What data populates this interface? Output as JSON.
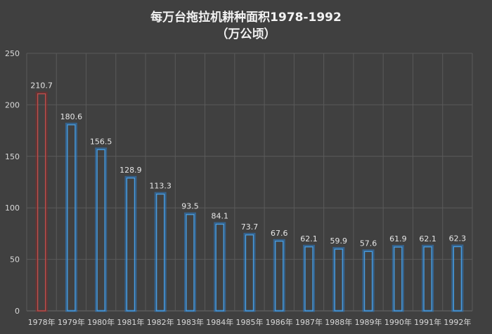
{
  "chart_data": {
    "type": "bar",
    "title": "每万台拖拉机耕种面积1978-1992",
    "subtitle": "（万公顷）",
    "xlabel": "",
    "ylabel": "",
    "categories": [
      "1978年",
      "1979年",
      "1980年",
      "1981年",
      "1982年",
      "1983年",
      "1984年",
      "1985年",
      "1986年",
      "1987年",
      "1988年",
      "1989年",
      "1990年",
      "1991年",
      "1992年"
    ],
    "values": [
      210.7,
      180.6,
      156.5,
      128.9,
      113.3,
      93.5,
      84.1,
      73.7,
      67.6,
      62.1,
      59.9,
      57.6,
      61.9,
      62.1,
      62.3
    ],
    "value_labels": [
      "210.7",
      "180.6",
      "156.5",
      "128.9",
      "113.3",
      "93.5",
      "84.1",
      "73.7",
      "67.6",
      "62.1",
      "59.9",
      "57.6",
      "61.9",
      "62.1",
      "62.3"
    ],
    "ylim": [
      0,
      250
    ],
    "y_ticks": [
      0,
      50,
      100,
      150,
      200,
      250
    ],
    "y_tick_labels": [
      "0",
      "50",
      "100",
      "150",
      "200",
      "250"
    ],
    "grid": true,
    "legend": "none",
    "colors": {
      "bar_outline": "#4a9ee0",
      "bar_glow": "#2f79c0",
      "highlight_outline": "#c0504d",
      "highlight_glow": "#7d2b2b"
    },
    "highlight_index": 0
  }
}
